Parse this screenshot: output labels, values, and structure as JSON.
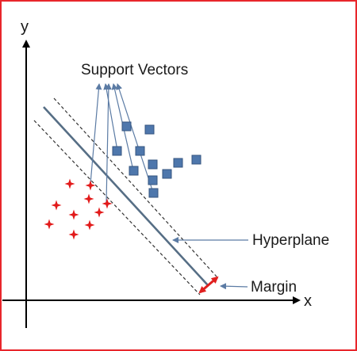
{
  "labels": {
    "y_axis": "y",
    "x_axis": "x",
    "support_vectors": "Support Vectors",
    "hyperplane": "Hyperplane",
    "margin": "Margin"
  },
  "colors": {
    "frame": "#e8262b",
    "axis": "#000000",
    "hyperplane": "#566e85",
    "square_fill": "#4e77ac",
    "square_stroke": "#36567f",
    "star": "#e21a1a",
    "pointer": "#5b7ba4",
    "margin_arrow": "#e0201f"
  },
  "classes": [
    {
      "name": "squares",
      "marker": "square",
      "count": 13
    },
    {
      "name": "stars",
      "marker": "star",
      "count": 10
    }
  ]
}
